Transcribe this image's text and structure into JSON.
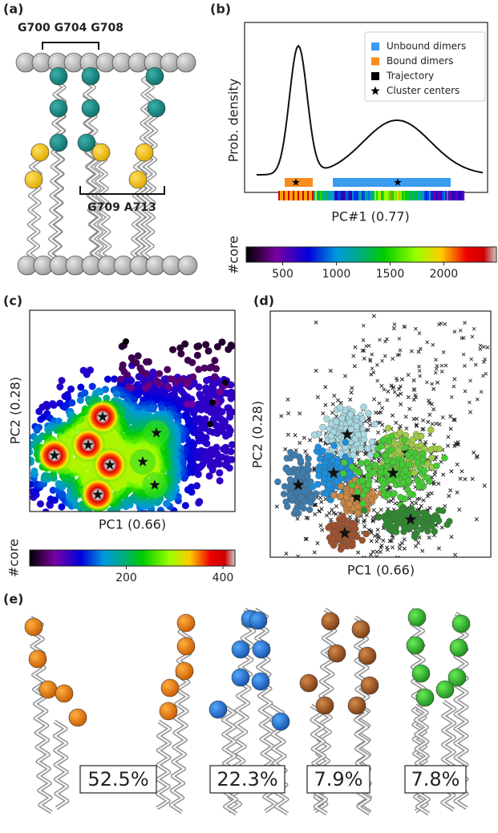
{
  "a": {
    "label": "(a)",
    "top_residues": "G700 G704 G708",
    "bottom_residues": "G709 A713"
  },
  "b": {
    "label": "(b)",
    "y_label": "Prob. density",
    "x_label": "PC#1 (0.77)",
    "legend": [
      {
        "name": "Unbound dimers",
        "color": "#3a9bef",
        "marker": "square"
      },
      {
        "name": "Bound dimers",
        "color": "#f78d1e",
        "marker": "square"
      },
      {
        "name": "Trajectory",
        "color": "#000000",
        "marker": "square"
      },
      {
        "name": "Cluster centers",
        "color": "#000000",
        "marker": "star"
      }
    ],
    "colorbar": {
      "label": "#core",
      "lim": [
        160,
        2490
      ],
      "ticks": [
        500,
        1000,
        1500,
        2000
      ]
    }
  },
  "c": {
    "label": "(c)",
    "x_label": "PC1 (0.66)",
    "y_label": "PC2 (0.28)",
    "colorbar": {
      "label": "#core",
      "lim": [
        0,
        425
      ],
      "ticks": [
        200,
        400
      ]
    }
  },
  "d": {
    "label": "(d)",
    "x_label": "PC1 (0.66)",
    "y_label": "PC2 (0.28)"
  },
  "e": {
    "label": "(e)",
    "clusters": [
      "52.5%",
      "22.3%",
      "7.9%",
      "7.8%"
    ]
  }
}
